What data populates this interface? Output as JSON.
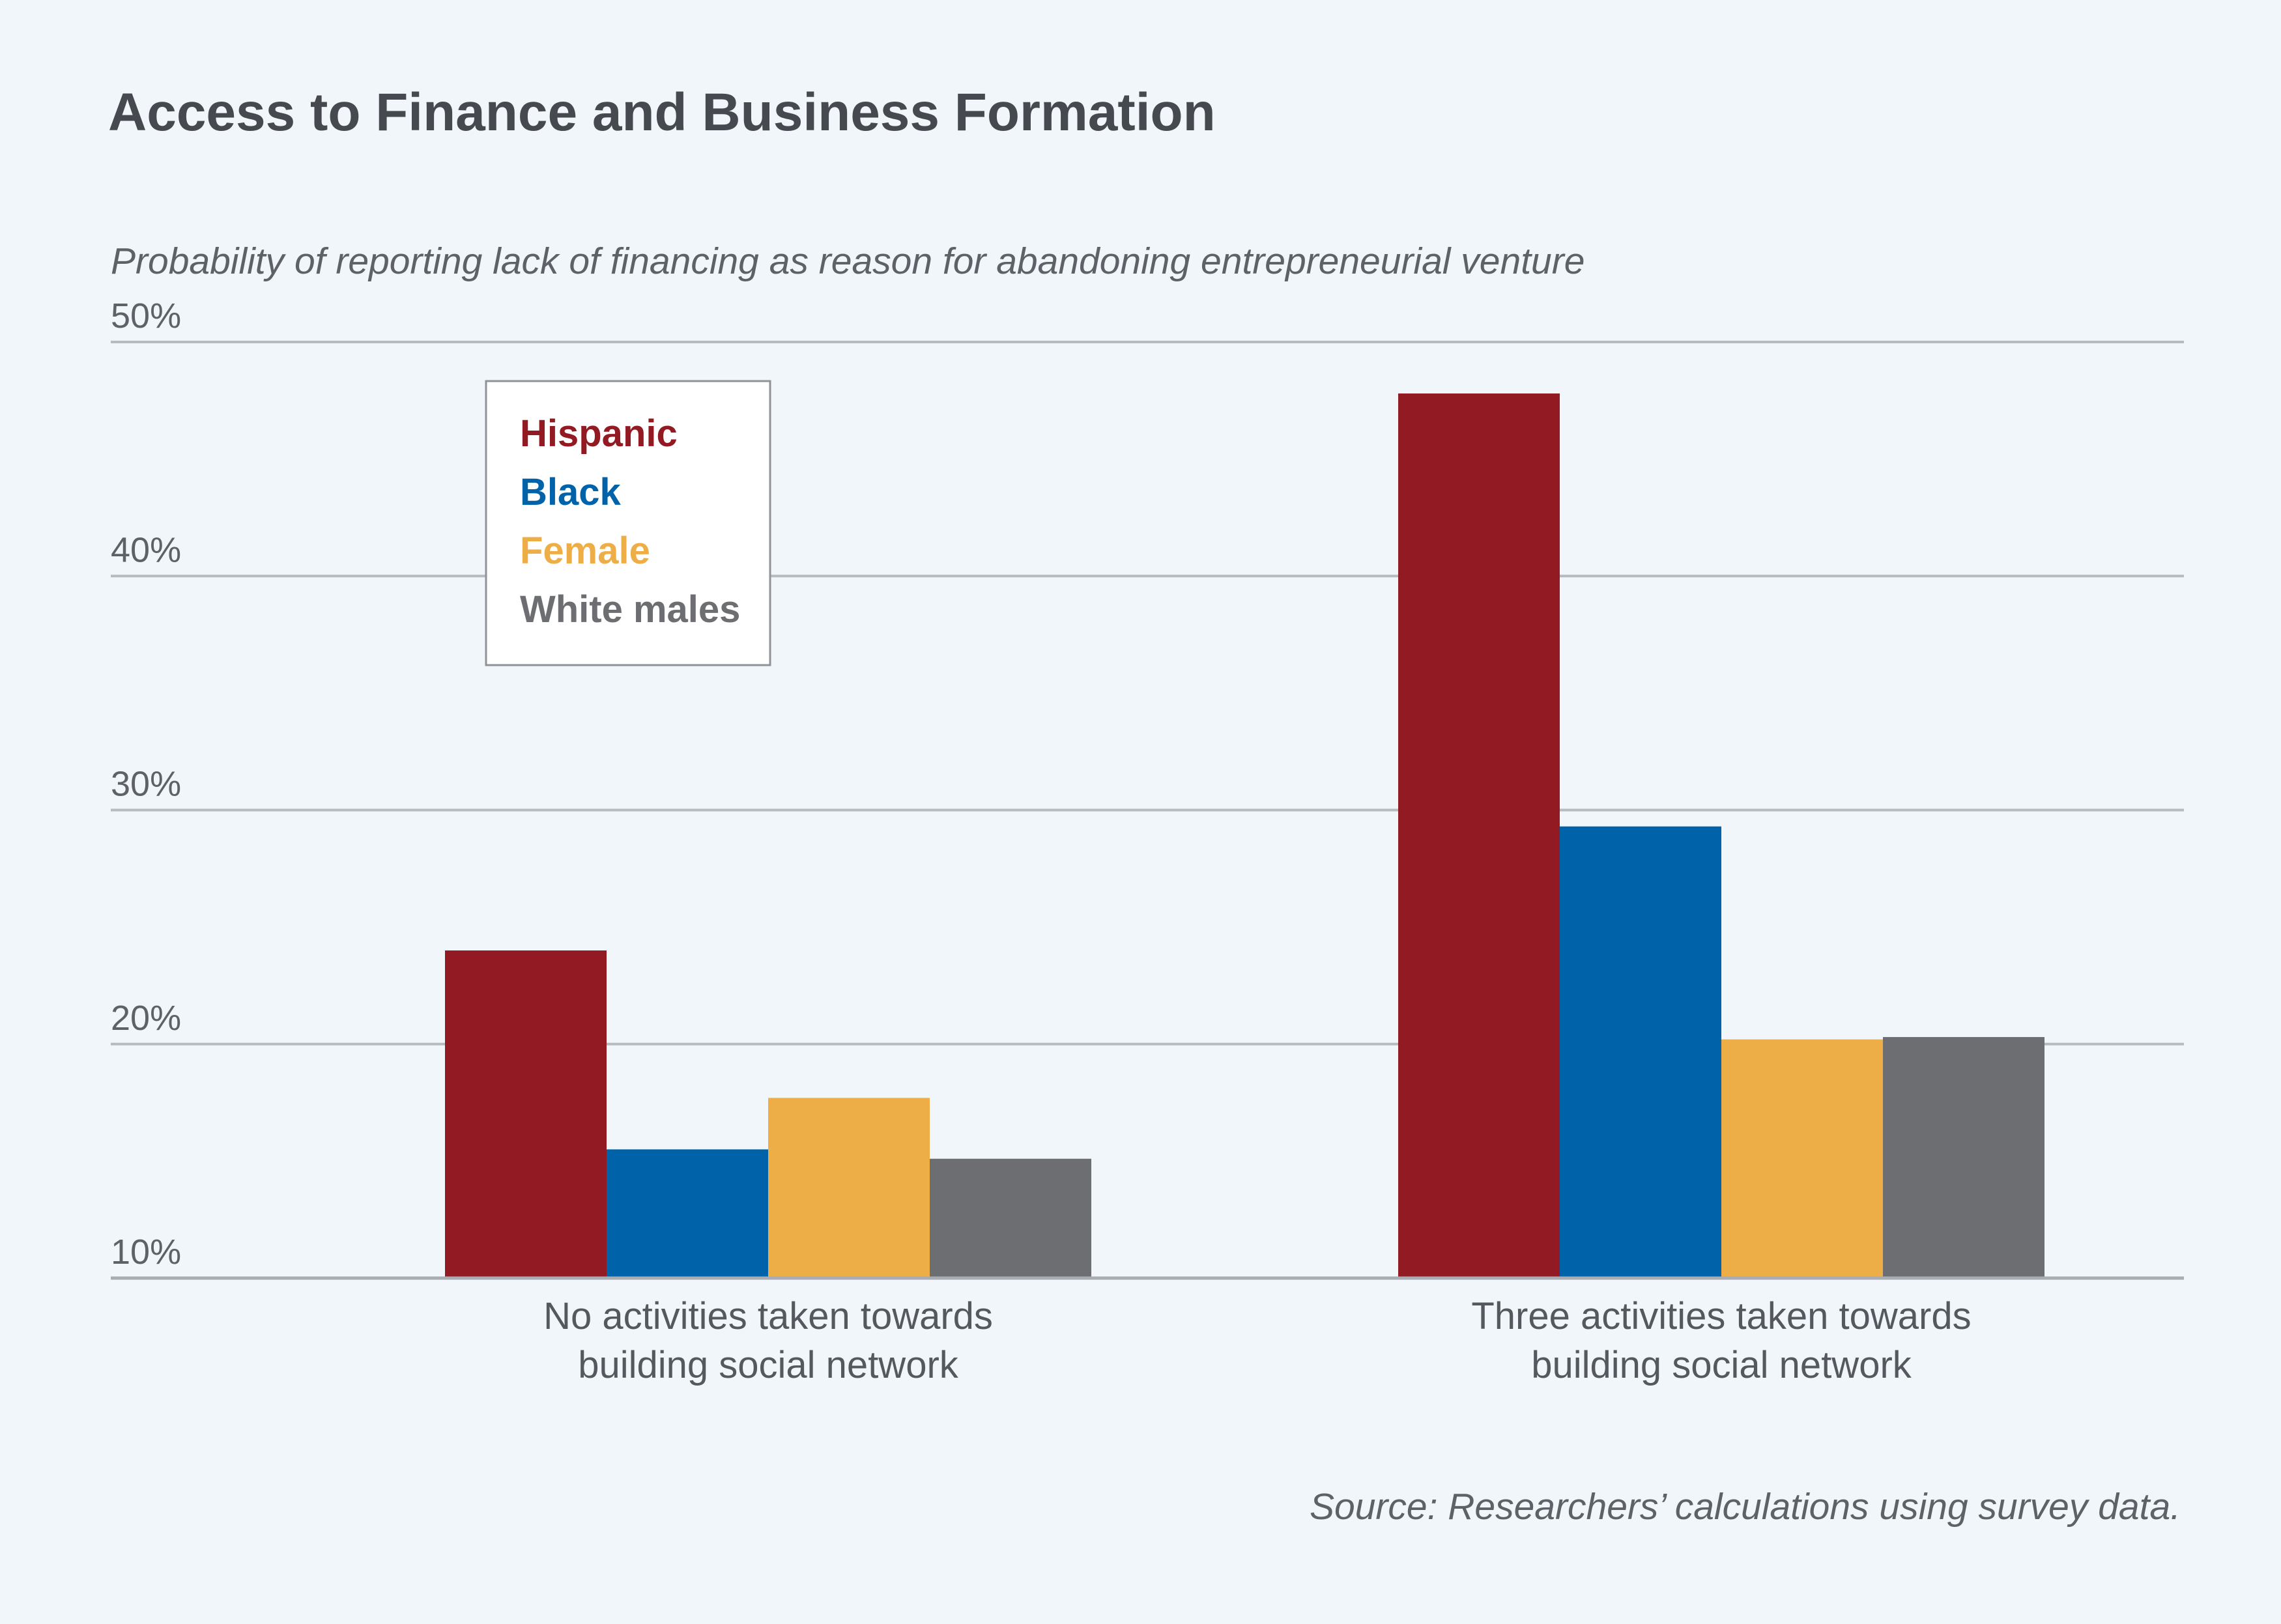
{
  "title": "Access to Finance and Business Formation",
  "subtitle": "Probability of reporting lack of financing as reason for abandoning entrepreneurial venture",
  "source": "Source: Researchers’ calculations using survey data.",
  "chart_data": {
    "type": "bar",
    "categories": [
      [
        "No activities taken towards",
        "building social network"
      ],
      [
        "Three activities taken towards",
        "building social network"
      ]
    ],
    "series": [
      {
        "name": "Hispanic",
        "color": "#921a22",
        "values": [
          24.0,
          47.8
        ]
      },
      {
        "name": "Black",
        "color": "#0062a8",
        "values": [
          15.5,
          29.3
        ]
      },
      {
        "name": "Female",
        "color": "#eeae47",
        "values": [
          17.7,
          20.2
        ]
      },
      {
        "name": "White males",
        "color": "#6d6e72",
        "values": [
          15.1,
          20.3
        ]
      }
    ],
    "ylim": [
      10,
      50
    ],
    "yticks": [
      10,
      20,
      30,
      40,
      50
    ],
    "ytick_labels": [
      "10%",
      "20%",
      "30%",
      "40%",
      "50%"
    ],
    "grid": true,
    "legend_position": "top-left"
  }
}
